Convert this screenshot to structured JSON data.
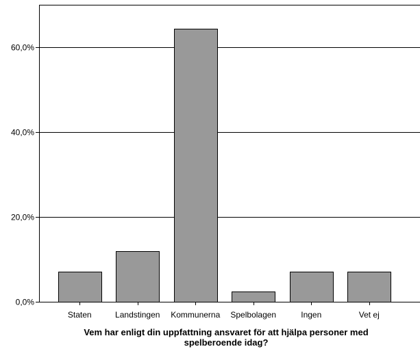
{
  "chart_data": {
    "type": "bar",
    "categories": [
      "Staten",
      "Landstingen",
      "Kommunerna",
      "Spelbolagen",
      "Ingen",
      "Vet ej"
    ],
    "values": [
      7.1,
      11.9,
      64.3,
      2.4,
      7.1,
      7.1
    ],
    "title": "",
    "xlabel": [
      "Vem har enligt din uppfattning ansvaret för att hjälpa personer med",
      "spelberoende idag?"
    ],
    "ylabel": "",
    "ylim": [
      0,
      70
    ],
    "yticks": [
      0,
      20,
      40,
      60
    ],
    "ytick_labels": [
      "0,0%",
      "20,0%",
      "40,0%",
      "60,0%"
    ],
    "grid": "horizontal",
    "colors": {
      "bar_fill": "#999999",
      "bar_stroke": "#000000",
      "grid": "#000000",
      "axis": "#000000"
    }
  }
}
